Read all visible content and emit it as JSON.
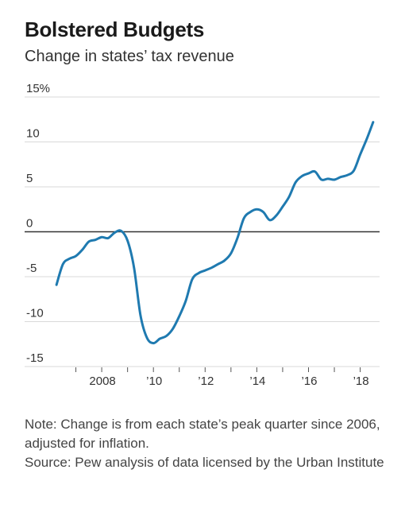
{
  "header": {
    "title": "Bolstered Budgets",
    "subtitle": "Change in states’ tax revenue"
  },
  "footer": {
    "note": "Note: Change is from each state’s peak quarter since 2006, adjusted for inflation.",
    "source": "Source: Pew analysis of data licensed by the Urban Institute"
  },
  "colors": {
    "line": "#1f7ab0",
    "grid": "#d9d9d9",
    "zero": "#333333"
  },
  "chart_data": {
    "type": "line",
    "title": "Bolstered Budgets",
    "subtitle": "Change in states’ tax revenue",
    "xlabel": "",
    "ylabel": "",
    "xlim": [
      2006.0,
      2018.75
    ],
    "ylim": [
      -15,
      15
    ],
    "grid": true,
    "legend": "none",
    "y_ticks": [
      {
        "value": 15,
        "label": "15%"
      },
      {
        "value": 10,
        "label": "10"
      },
      {
        "value": 5,
        "label": "5"
      },
      {
        "value": 0,
        "label": "0"
      },
      {
        "value": -5,
        "label": "-5"
      },
      {
        "value": -10,
        "label": "-10"
      },
      {
        "value": -15,
        "label": "-15"
      }
    ],
    "x_ticks": [
      2007,
      2008,
      2009,
      2010,
      2011,
      2012,
      2013,
      2014,
      2015,
      2016,
      2017,
      2018
    ],
    "x_tick_labels": [
      {
        "value": 2008,
        "label": "2008"
      },
      {
        "value": 2010,
        "label": "’10"
      },
      {
        "value": 2012,
        "label": "’12"
      },
      {
        "value": 2014,
        "label": "’14"
      },
      {
        "value": 2016,
        "label": "’16"
      },
      {
        "value": 2018,
        "label": "’18"
      }
    ],
    "series": [
      {
        "x": [
          2006.25,
          2006.5,
          2006.75,
          2007.0,
          2007.25,
          2007.5,
          2007.75,
          2008.0,
          2008.25,
          2008.5,
          2008.75,
          2009.0,
          2009.25,
          2009.5,
          2009.75,
          2010.0,
          2010.25,
          2010.5,
          2010.75,
          2011.0,
          2011.25,
          2011.5,
          2011.75,
          2012.0,
          2012.25,
          2012.5,
          2012.75,
          2013.0,
          2013.25,
          2013.5,
          2013.75,
          2014.0,
          2014.25,
          2014.5,
          2014.75,
          2015.0,
          2015.25,
          2015.5,
          2015.75,
          2016.0,
          2016.25,
          2016.5,
          2016.75,
          2017.0,
          2017.25,
          2017.5,
          2017.75,
          2018.0,
          2018.25,
          2018.5
        ],
        "values": [
          -5.9,
          -3.6,
          -3.0,
          -2.7,
          -2.0,
          -1.1,
          -0.9,
          -0.6,
          -0.7,
          -0.1,
          0.1,
          -1.0,
          -4.0,
          -9.3,
          -11.8,
          -12.4,
          -11.9,
          -11.6,
          -10.8,
          -9.4,
          -7.7,
          -5.3,
          -4.6,
          -4.3,
          -4.0,
          -3.6,
          -3.2,
          -2.4,
          -0.7,
          1.5,
          2.2,
          2.5,
          2.2,
          1.3,
          1.8,
          2.8,
          3.9,
          5.5,
          6.2,
          6.5,
          6.7,
          5.8,
          5.9,
          5.8,
          6.1,
          6.3,
          6.8,
          8.6,
          10.3,
          12.2
        ]
      }
    ]
  }
}
